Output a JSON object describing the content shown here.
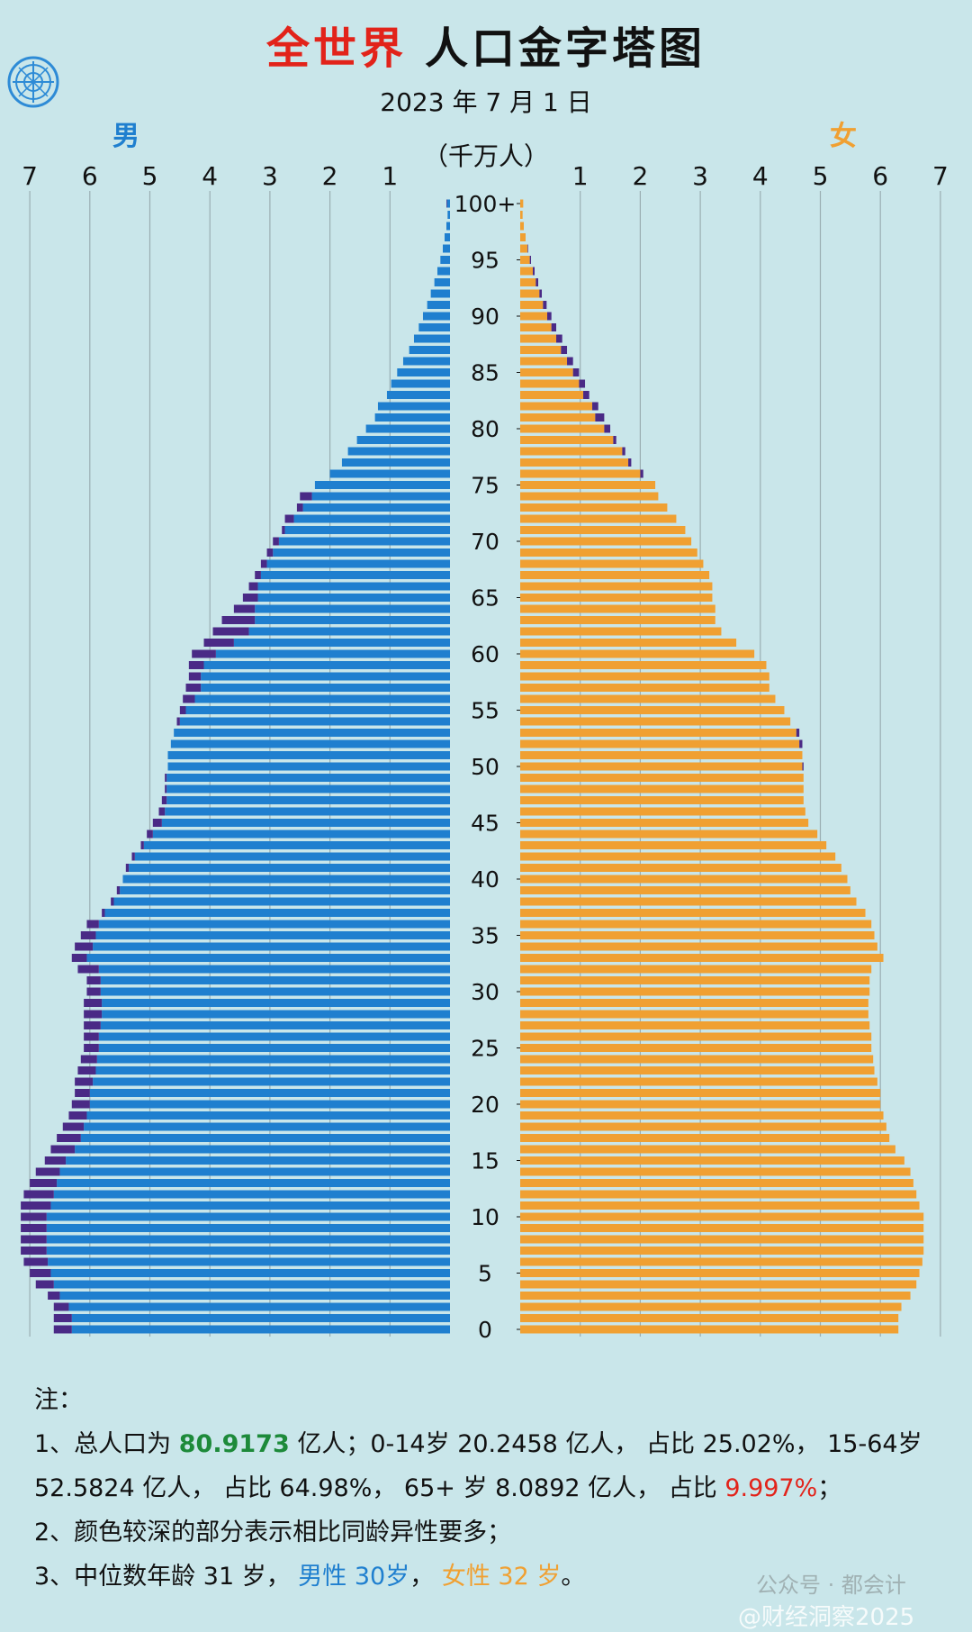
{
  "title": {
    "red": "全世界",
    "black": "人口金字塔图"
  },
  "date": "2023 年 7 月 1 日",
  "unit": "（千万人）",
  "labels": {
    "male": "男",
    "female": "女"
  },
  "chart_data": {
    "type": "bar",
    "title": "全世界 人口金字塔图",
    "subtitle": "2023 年 7 月 1 日",
    "unit": "（千万人）",
    "xlim": [
      0,
      7
    ],
    "x_ticks": [
      "7",
      "6",
      "5",
      "4",
      "3",
      "2",
      "1",
      "1",
      "2",
      "3",
      "4",
      "5",
      "6",
      "7"
    ],
    "age_ticks": [
      "0",
      "5",
      "10",
      "15",
      "20",
      "25",
      "30",
      "35",
      "40",
      "45",
      "50",
      "55",
      "60",
      "65",
      "70",
      "75",
      "80",
      "85",
      "90",
      "95",
      "100+"
    ],
    "ages": [
      0,
      1,
      2,
      3,
      4,
      5,
      6,
      7,
      8,
      9,
      10,
      11,
      12,
      13,
      14,
      15,
      16,
      17,
      18,
      19,
      20,
      21,
      22,
      23,
      24,
      25,
      26,
      27,
      28,
      29,
      30,
      31,
      32,
      33,
      34,
      35,
      36,
      37,
      38,
      39,
      40,
      41,
      42,
      43,
      44,
      45,
      46,
      47,
      48,
      49,
      50,
      51,
      52,
      53,
      54,
      55,
      56,
      57,
      58,
      59,
      60,
      61,
      62,
      63,
      64,
      65,
      66,
      67,
      68,
      69,
      70,
      71,
      72,
      73,
      74,
      75,
      76,
      77,
      78,
      79,
      80,
      81,
      82,
      83,
      84,
      85,
      86,
      87,
      88,
      89,
      90,
      91,
      92,
      93,
      94,
      95,
      96,
      97,
      98,
      99,
      100
    ],
    "series": [
      {
        "name": "男",
        "values": [
          6.6,
          6.6,
          6.6,
          6.7,
          6.9,
          7.0,
          7.1,
          7.15,
          7.15,
          7.15,
          7.15,
          7.15,
          7.1,
          7.0,
          6.9,
          6.75,
          6.65,
          6.55,
          6.45,
          6.35,
          6.3,
          6.25,
          6.25,
          6.2,
          6.15,
          6.1,
          6.1,
          6.1,
          6.1,
          6.1,
          6.05,
          6.05,
          6.2,
          6.3,
          6.25,
          6.15,
          6.05,
          5.8,
          5.65,
          5.55,
          5.45,
          5.4,
          5.3,
          5.15,
          5.05,
          4.95,
          4.85,
          4.8,
          4.75,
          4.75,
          4.7,
          4.7,
          4.65,
          4.6,
          4.55,
          4.5,
          4.45,
          4.4,
          4.35,
          4.35,
          4.3,
          4.1,
          3.95,
          3.8,
          3.6,
          3.45,
          3.35,
          3.25,
          3.15,
          3.05,
          2.95,
          2.8,
          2.75,
          2.55,
          2.5,
          2.25,
          2.0,
          1.8,
          1.7,
          1.55,
          1.4,
          1.25,
          1.2,
          1.05,
          0.98,
          0.88,
          0.78,
          0.68,
          0.6,
          0.52,
          0.45,
          0.38,
          0.32,
          0.26,
          0.21,
          0.16,
          0.12,
          0.09,
          0.06,
          0.04,
          0.06
        ]
      },
      {
        "name": "女",
        "values": [
          6.3,
          6.3,
          6.35,
          6.5,
          6.6,
          6.65,
          6.7,
          6.72,
          6.72,
          6.72,
          6.72,
          6.65,
          6.6,
          6.55,
          6.5,
          6.4,
          6.25,
          6.15,
          6.1,
          6.05,
          6.0,
          6.0,
          5.95,
          5.9,
          5.88,
          5.85,
          5.85,
          5.82,
          5.8,
          5.8,
          5.82,
          5.82,
          5.85,
          6.05,
          5.95,
          5.9,
          5.85,
          5.75,
          5.6,
          5.5,
          5.45,
          5.35,
          5.25,
          5.1,
          4.95,
          4.8,
          4.75,
          4.72,
          4.72,
          4.72,
          4.72,
          4.7,
          4.7,
          4.65,
          4.5,
          4.4,
          4.25,
          4.15,
          4.15,
          4.1,
          3.9,
          3.6,
          3.35,
          3.25,
          3.25,
          3.2,
          3.2,
          3.15,
          3.05,
          2.95,
          2.85,
          2.75,
          2.6,
          2.45,
          2.3,
          2.25,
          2.05,
          1.85,
          1.75,
          1.6,
          1.5,
          1.4,
          1.3,
          1.15,
          1.08,
          0.98,
          0.88,
          0.78,
          0.7,
          0.6,
          0.52,
          0.44,
          0.36,
          0.3,
          0.24,
          0.18,
          0.13,
          0.09,
          0.06,
          0.04,
          0.05
        ]
      }
    ]
  },
  "notes": {
    "heading": "注：",
    "line1": {
      "a": "1、总人口为 ",
      "total": "80.9173",
      "b": " 亿人；0-14岁 20.2458 亿人， 占比 25.02%， 15-64岁"
    },
    "line2": {
      "a": "52.5824 亿人， 占比 64.98%， 65+ 岁 8.0892 亿人， 占比 ",
      "pct": "9.997%",
      "b": "；"
    },
    "line3": "2、颜色较深的部分表示相比同龄异性要多；",
    "line4": {
      "a": "3、中位数年龄 31 岁， ",
      "male": "男性 30岁",
      "sep": "， ",
      "female": "女性 32 岁",
      "end": "。"
    }
  },
  "watermark": {
    "line1": "公众号 · 都会计",
    "line2": "@财经洞察2025"
  },
  "colors": {
    "background": "#c9e6ea",
    "male": "#1f7fcf",
    "female": "#f0a032",
    "surplus": "#4a2a86",
    "title_red": "#e2231a",
    "total_green": "#1d8a3a"
  }
}
